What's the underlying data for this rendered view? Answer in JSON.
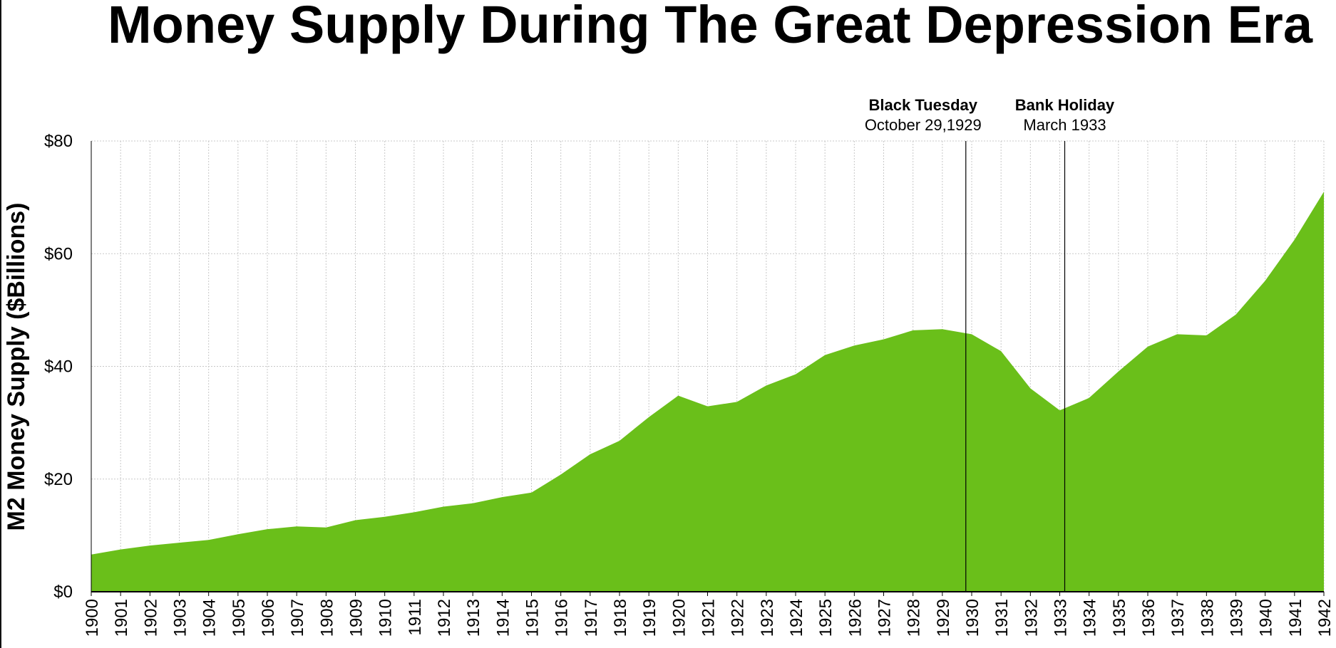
{
  "chart_data": {
    "type": "area",
    "title": "Money Supply During The Great Depression Era",
    "ylabel": "M2 Money Supply ($Billions)",
    "xlabel": "",
    "ylim": [
      0,
      80
    ],
    "yticks": [
      0,
      20,
      40,
      60,
      80
    ],
    "ytick_labels": [
      "$0",
      "$20",
      "$40",
      "$60",
      "$80"
    ],
    "grid": true,
    "fill_color": "#6abf1a",
    "x": [
      1900,
      1901,
      1902,
      1903,
      1904,
      1905,
      1906,
      1907,
      1908,
      1909,
      1910,
      1911,
      1912,
      1913,
      1914,
      1915,
      1916,
      1917,
      1918,
      1919,
      1920,
      1921,
      1922,
      1923,
      1924,
      1925,
      1926,
      1927,
      1928,
      1929,
      1930,
      1931,
      1932,
      1933,
      1934,
      1935,
      1936,
      1937,
      1938,
      1939,
      1940,
      1941,
      1942
    ],
    "x_tick_labels": [
      "1900",
      "1901",
      "1902",
      "1903",
      "1904",
      "1905",
      "1906",
      "1907",
      "1908",
      "1909",
      "1910",
      "1911",
      "1912",
      "1913",
      "1914",
      "1915",
      "1916",
      "1917",
      "1918",
      "1919",
      "1920",
      "1921",
      "1922",
      "1923",
      "1924",
      "1925",
      "1926",
      "1927",
      "1928",
      "1929",
      "1930",
      "1931",
      "1932",
      "1933",
      "1934",
      "1935",
      "1936",
      "1937",
      "1938",
      "1939",
      "1940",
      "1941",
      "1942"
    ],
    "values": [
      6.6,
      7.5,
      8.2,
      8.7,
      9.2,
      10.2,
      11.1,
      11.6,
      11.4,
      12.7,
      13.3,
      14.1,
      15.1,
      15.7,
      16.8,
      17.6,
      20.8,
      24.4,
      26.8,
      31.0,
      34.8,
      32.9,
      33.7,
      36.6,
      38.6,
      42.0,
      43.7,
      44.8,
      46.4,
      46.6,
      45.7,
      42.7,
      36.1,
      32.2,
      34.4,
      39.1,
      43.5,
      45.7,
      45.5,
      49.2,
      55.2,
      62.5,
      71.0
    ],
    "annotations": [
      {
        "x": 1929.8,
        "title": "Black Tuesday",
        "subtitle": "October 29,1929"
      },
      {
        "x": 1933.17,
        "title": "Bank Holiday",
        "subtitle": "March 1933"
      }
    ]
  }
}
